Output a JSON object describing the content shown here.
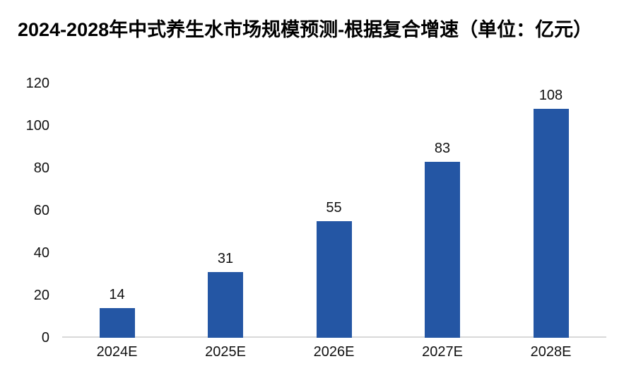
{
  "page": {
    "background": "#ffffff"
  },
  "chart_data": {
    "type": "bar",
    "title": "2024-2028年中式养生水市场规模预测-根据复合增速（单位：亿元）",
    "unit_label": "亿元",
    "categories": [
      "2024E",
      "2025E",
      "2026E",
      "2027E",
      "2028E"
    ],
    "values": [
      14,
      31,
      55,
      83,
      108
    ],
    "xlabel": "",
    "ylabel": "",
    "ylim": [
      0,
      120
    ],
    "yticks": [
      0,
      20,
      40,
      60,
      80,
      100,
      120
    ],
    "grid": false,
    "legend_position": "none",
    "bar_color": "#2456A4",
    "text_color": "#111111",
    "title_color": "#000000",
    "axis_line_color": "#d9d9d9"
  }
}
